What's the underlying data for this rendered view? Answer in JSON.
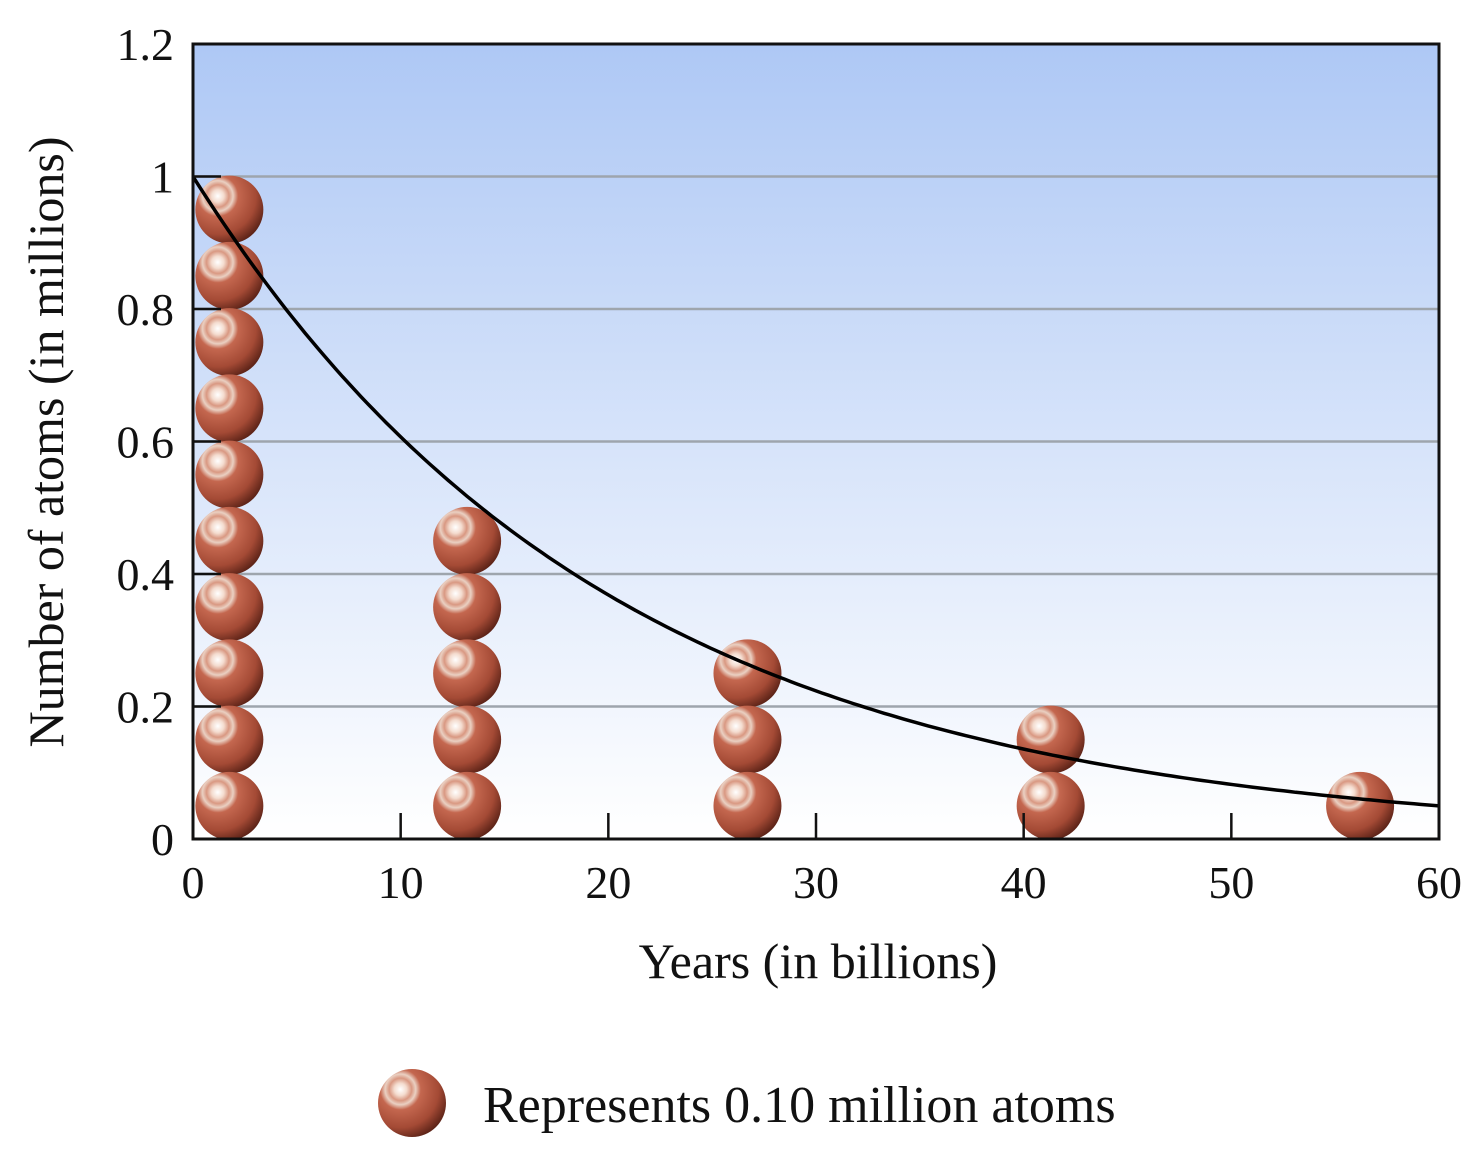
{
  "chart_data": {
    "type": "scatter",
    "title": "",
    "xlabel": "Years (in billions)",
    "ylabel": "Number of atoms (in millions)",
    "xlim": [
      0,
      60
    ],
    "ylim": [
      0,
      1.2
    ],
    "x_ticks": [
      0,
      10,
      20,
      30,
      40,
      50,
      60
    ],
    "y_ticks": [
      0,
      0.2,
      0.4,
      0.6,
      0.8,
      1,
      1.2
    ],
    "y_tick_labels": [
      "0",
      "0.2",
      "0.4",
      "0.6",
      "0.8",
      "1",
      "1.2"
    ],
    "grid": true,
    "background": {
      "top_color": "#aec8f5",
      "bottom_color": "#ffffff"
    },
    "marker_color": "#b5563f",
    "curve_color": "#000000",
    "atom_columns": [
      {
        "x": 1.75,
        "count": 10
      },
      {
        "x": 13.2,
        "count": 5
      },
      {
        "x": 26.7,
        "count": 3
      },
      {
        "x": 41.3,
        "count": 2
      },
      {
        "x": 56.2,
        "count": 1
      }
    ],
    "curve": {
      "description_points": [
        {
          "x": 0,
          "y": 1.0
        },
        {
          "x": 10,
          "y": 0.6
        },
        {
          "x": 20,
          "y": 0.4
        },
        {
          "x": 30,
          "y": 0.25
        },
        {
          "x": 40,
          "y": 0.15
        },
        {
          "x": 50,
          "y": 0.09
        },
        {
          "x": 60,
          "y": 0.05
        }
      ]
    },
    "legend": {
      "text": "Represents 0.10 million atoms",
      "position": "bottom-center"
    }
  }
}
